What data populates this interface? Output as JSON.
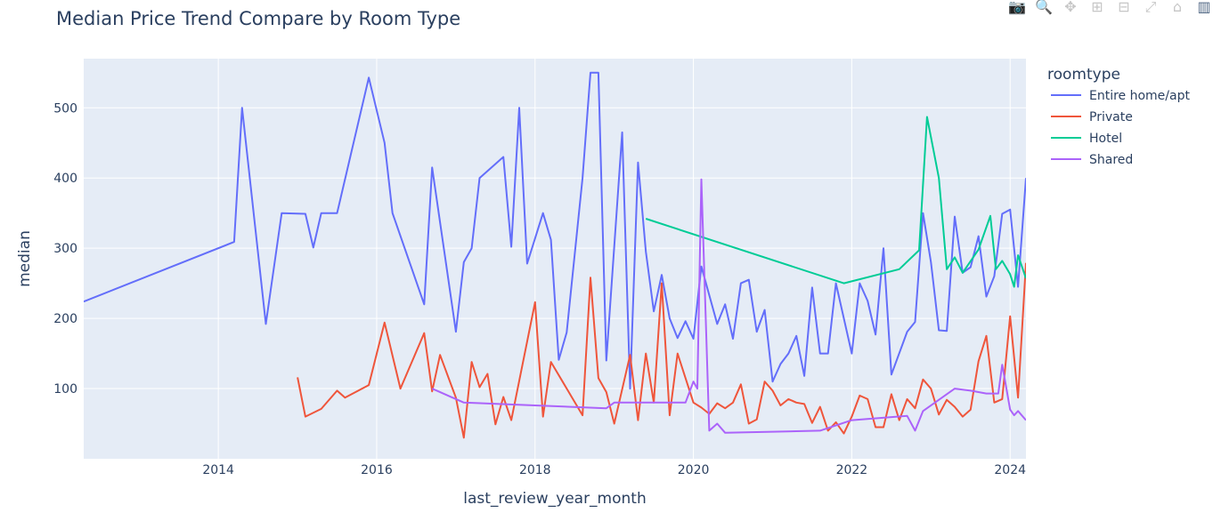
{
  "colors": {
    "plot_bg": "#e5ecf6",
    "grid": "#ffffff",
    "text": "#2a3f5f",
    "modebar": "#c6c6c6",
    "modebar_active": "#506784"
  },
  "modebar": {
    "icons": [
      "camera-icon",
      "zoom-icon",
      "pan-icon",
      "zoom-in-icon",
      "zoom-out-icon",
      "autoscale-icon",
      "home-icon",
      "plotly-logo-icon"
    ]
  },
  "chart_data": {
    "type": "line",
    "title": "Median Price Trend Compare by Room Type",
    "xlabel": "last_review_year_month",
    "ylabel": "median",
    "xlim": [
      2012.3,
      2024.2
    ],
    "ylim": [
      0,
      570
    ],
    "x_ticks": [
      2014,
      2016,
      2018,
      2020,
      2022,
      2024
    ],
    "x_tick_labels": [
      "2014",
      "2016",
      "2018",
      "2020",
      "2022",
      "2024"
    ],
    "y_ticks": [
      100,
      200,
      300,
      400,
      500
    ],
    "y_tick_labels": [
      "100",
      "200",
      "300",
      "400",
      "500"
    ],
    "grid": true,
    "legend_title": "roomtype",
    "legend_position": "right",
    "series": [
      {
        "name": "Entire home/apt",
        "color": "#636efa",
        "points": [
          [
            2012.3,
            224
          ],
          [
            2014.2,
            309
          ],
          [
            2014.3,
            500
          ],
          [
            2014.6,
            192
          ],
          [
            2014.8,
            350
          ],
          [
            2015.1,
            349
          ],
          [
            2015.2,
            301
          ],
          [
            2015.3,
            350
          ],
          [
            2015.5,
            350
          ],
          [
            2015.9,
            543
          ],
          [
            2016.1,
            450
          ],
          [
            2016.2,
            350
          ],
          [
            2016.6,
            220
          ],
          [
            2016.7,
            415
          ],
          [
            2017.0,
            181
          ],
          [
            2017.1,
            280
          ],
          [
            2017.2,
            300
          ],
          [
            2017.3,
            400
          ],
          [
            2017.6,
            430
          ],
          [
            2017.7,
            302
          ],
          [
            2017.8,
            500
          ],
          [
            2017.9,
            278
          ],
          [
            2018.1,
            350
          ],
          [
            2018.2,
            312
          ],
          [
            2018.3,
            141
          ],
          [
            2018.4,
            180
          ],
          [
            2018.6,
            400
          ],
          [
            2018.7,
            550
          ],
          [
            2018.8,
            550
          ],
          [
            2018.9,
            140
          ],
          [
            2019.1,
            465
          ],
          [
            2019.2,
            100
          ],
          [
            2019.3,
            422
          ],
          [
            2019.4,
            295
          ],
          [
            2019.5,
            210
          ],
          [
            2019.6,
            262
          ],
          [
            2019.7,
            200
          ],
          [
            2019.8,
            172
          ],
          [
            2019.9,
            196
          ],
          [
            2020.0,
            171
          ],
          [
            2020.1,
            274
          ],
          [
            2020.3,
            192
          ],
          [
            2020.4,
            220
          ],
          [
            2020.5,
            171
          ],
          [
            2020.6,
            250
          ],
          [
            2020.7,
            255
          ],
          [
            2020.8,
            181
          ],
          [
            2020.9,
            212
          ],
          [
            2021.0,
            110
          ],
          [
            2021.1,
            135
          ],
          [
            2021.2,
            150
          ],
          [
            2021.3,
            175
          ],
          [
            2021.4,
            118
          ],
          [
            2021.5,
            244
          ],
          [
            2021.6,
            150
          ],
          [
            2021.7,
            150
          ],
          [
            2021.8,
            250
          ],
          [
            2022.0,
            150
          ],
          [
            2022.1,
            250
          ],
          [
            2022.2,
            225
          ],
          [
            2022.3,
            177
          ],
          [
            2022.4,
            300
          ],
          [
            2022.5,
            120
          ],
          [
            2022.7,
            181
          ],
          [
            2022.8,
            195
          ],
          [
            2022.9,
            350
          ],
          [
            2023.0,
            280
          ],
          [
            2023.1,
            183
          ],
          [
            2023.2,
            182
          ],
          [
            2023.3,
            345
          ],
          [
            2023.4,
            265
          ],
          [
            2023.5,
            273
          ],
          [
            2023.6,
            317
          ],
          [
            2023.7,
            231
          ],
          [
            2023.8,
            260
          ],
          [
            2023.9,
            349
          ],
          [
            2024.0,
            355
          ],
          [
            2024.1,
            245
          ],
          [
            2024.2,
            400
          ]
        ]
      },
      {
        "name": "Private",
        "color": "#ef553b",
        "points": [
          [
            2015.0,
            116
          ],
          [
            2015.1,
            60
          ],
          [
            2015.3,
            71
          ],
          [
            2015.5,
            97
          ],
          [
            2015.6,
            87
          ],
          [
            2015.9,
            105
          ],
          [
            2016.1,
            194
          ],
          [
            2016.3,
            100
          ],
          [
            2016.6,
            179
          ],
          [
            2016.7,
            96
          ],
          [
            2016.8,
            148
          ],
          [
            2017.0,
            87
          ],
          [
            2017.1,
            30
          ],
          [
            2017.2,
            138
          ],
          [
            2017.3,
            102
          ],
          [
            2017.4,
            121
          ],
          [
            2017.5,
            49
          ],
          [
            2017.6,
            88
          ],
          [
            2017.7,
            55
          ],
          [
            2018.0,
            223
          ],
          [
            2018.1,
            60
          ],
          [
            2018.2,
            138
          ],
          [
            2018.6,
            62
          ],
          [
            2018.7,
            258
          ],
          [
            2018.8,
            115
          ],
          [
            2018.9,
            95
          ],
          [
            2019.0,
            50
          ],
          [
            2019.2,
            148
          ],
          [
            2019.3,
            55
          ],
          [
            2019.4,
            150
          ],
          [
            2019.5,
            80
          ],
          [
            2019.6,
            250
          ],
          [
            2019.7,
            62
          ],
          [
            2019.8,
            150
          ],
          [
            2020.0,
            80
          ],
          [
            2020.1,
            73
          ],
          [
            2020.2,
            64
          ],
          [
            2020.3,
            79
          ],
          [
            2020.4,
            72
          ],
          [
            2020.5,
            80
          ],
          [
            2020.6,
            106
          ],
          [
            2020.7,
            50
          ],
          [
            2020.8,
            56
          ],
          [
            2020.9,
            110
          ],
          [
            2021.0,
            97
          ],
          [
            2021.1,
            76
          ],
          [
            2021.2,
            85
          ],
          [
            2021.3,
            80
          ],
          [
            2021.4,
            78
          ],
          [
            2021.5,
            51
          ],
          [
            2021.6,
            74
          ],
          [
            2021.7,
            40
          ],
          [
            2021.8,
            52
          ],
          [
            2021.9,
            36
          ],
          [
            2022.0,
            60
          ],
          [
            2022.1,
            90
          ],
          [
            2022.2,
            85
          ],
          [
            2022.3,
            45
          ],
          [
            2022.4,
            45
          ],
          [
            2022.5,
            92
          ],
          [
            2022.6,
            55
          ],
          [
            2022.7,
            85
          ],
          [
            2022.8,
            72
          ],
          [
            2022.9,
            113
          ],
          [
            2023.0,
            100
          ],
          [
            2023.1,
            63
          ],
          [
            2023.2,
            84
          ],
          [
            2023.3,
            74
          ],
          [
            2023.4,
            60
          ],
          [
            2023.5,
            70
          ],
          [
            2023.6,
            139
          ],
          [
            2023.7,
            175
          ],
          [
            2023.8,
            80
          ],
          [
            2023.9,
            85
          ],
          [
            2024.0,
            203
          ],
          [
            2024.1,
            87
          ],
          [
            2024.2,
            279
          ]
        ]
      },
      {
        "name": "Hotel",
        "color": "#00cc96",
        "points": [
          [
            2019.4,
            342
          ],
          [
            2021.9,
            250
          ],
          [
            2022.6,
            270
          ],
          [
            2022.85,
            297
          ],
          [
            2022.95,
            487
          ],
          [
            2023.1,
            400
          ],
          [
            2023.2,
            270
          ],
          [
            2023.3,
            287
          ],
          [
            2023.4,
            265
          ],
          [
            2023.6,
            298
          ],
          [
            2023.75,
            346
          ],
          [
            2023.82,
            270
          ],
          [
            2023.9,
            282
          ],
          [
            2024.0,
            263
          ],
          [
            2024.05,
            245
          ],
          [
            2024.1,
            290
          ],
          [
            2024.2,
            257
          ]
        ]
      },
      {
        "name": "Shared",
        "color": "#ab63fa",
        "points": [
          [
            2016.7,
            100
          ],
          [
            2017.1,
            80
          ],
          [
            2018.0,
            76
          ],
          [
            2018.9,
            72
          ],
          [
            2019.0,
            80
          ],
          [
            2019.7,
            80
          ],
          [
            2019.9,
            80
          ],
          [
            2020.0,
            110
          ],
          [
            2020.05,
            100
          ],
          [
            2020.1,
            398
          ],
          [
            2020.2,
            40
          ],
          [
            2020.3,
            50
          ],
          [
            2020.4,
            37
          ],
          [
            2020.8,
            38
          ],
          [
            2021.6,
            40
          ],
          [
            2022.0,
            55
          ],
          [
            2022.7,
            61
          ],
          [
            2022.8,
            40
          ],
          [
            2022.9,
            68
          ],
          [
            2023.3,
            100
          ],
          [
            2023.5,
            97
          ],
          [
            2023.7,
            93
          ],
          [
            2023.85,
            93
          ],
          [
            2023.9,
            134
          ],
          [
            2024.0,
            70
          ],
          [
            2024.05,
            62
          ],
          [
            2024.1,
            68
          ],
          [
            2024.2,
            55
          ]
        ]
      }
    ]
  }
}
